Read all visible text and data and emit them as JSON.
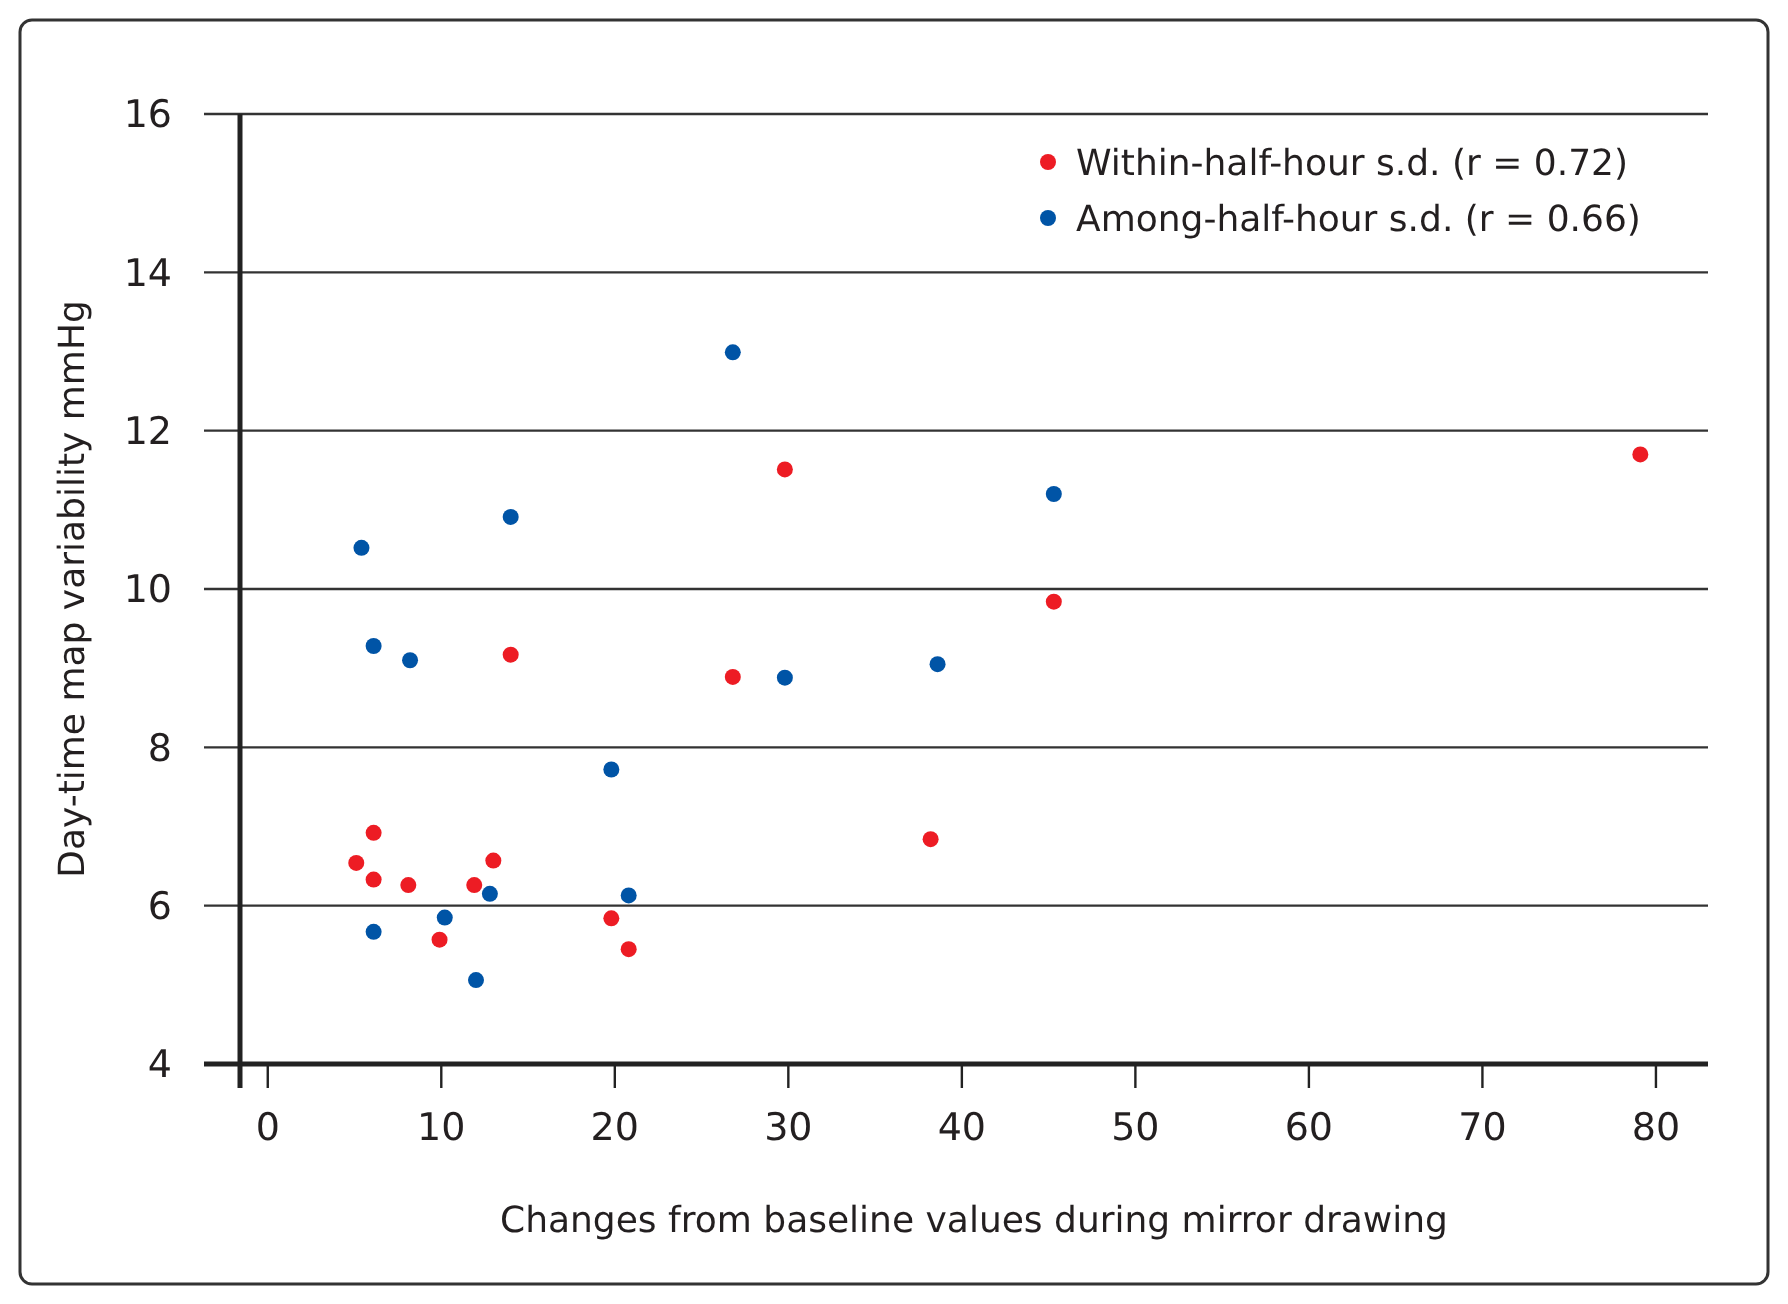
{
  "chart_data": {
    "type": "scatter",
    "xlabel": "Changes from baseline values during mirror drawing",
    "ylabel": "Day-time map variability mmHg",
    "xlim": [
      -1.6,
      83
    ],
    "xticks": [
      0,
      10,
      20,
      30,
      40,
      50,
      60,
      70,
      80
    ],
    "ylim": [
      4,
      16
    ],
    "yticks": [
      4,
      6,
      8,
      10,
      12,
      14,
      16
    ],
    "grid": "y",
    "legend": "top right",
    "marker": "circle",
    "series": [
      {
        "name": "Within-half-hour s.d. (r = 0.72)",
        "color": "#ed1c24",
        "x": [
          5.1,
          6.1,
          6.1,
          8.1,
          9.9,
          11.9,
          13.0,
          14.0,
          19.8,
          20.8,
          26.8,
          29.8,
          38.2,
          45.3,
          79.1
        ],
        "values": [
          6.54,
          6.92,
          6.33,
          6.26,
          5.57,
          6.26,
          6.57,
          9.17,
          5.84,
          5.45,
          8.89,
          11.51,
          6.84,
          9.84,
          11.7
        ]
      },
      {
        "name": "Among-half-hour s.d. (r = 0.66)",
        "color": "#0054a6",
        "x": [
          5.4,
          6.1,
          6.1,
          8.2,
          10.2,
          12.0,
          12.8,
          14.0,
          19.8,
          20.8,
          26.8,
          29.8,
          38.6,
          45.3
        ],
        "values": [
          10.52,
          9.28,
          5.67,
          9.1,
          5.85,
          5.06,
          6.15,
          10.91,
          7.72,
          6.13,
          12.99,
          8.88,
          9.05,
          11.2
        ]
      }
    ]
  }
}
